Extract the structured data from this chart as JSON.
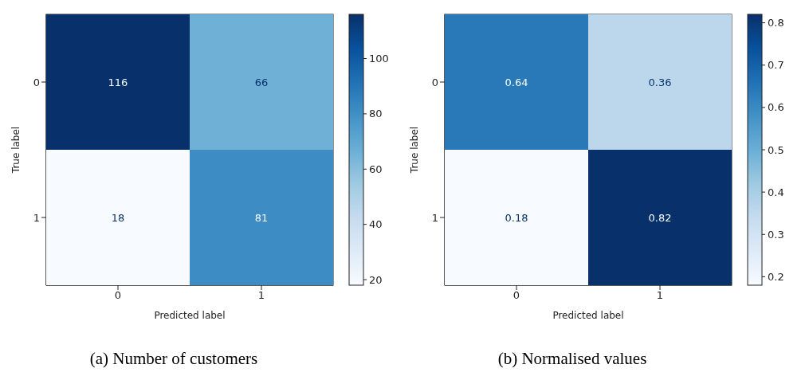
{
  "chart_data": [
    {
      "type": "heatmap",
      "title": "(a) Number of customers",
      "xlabel": "Predicted label",
      "ylabel": "True label",
      "categories": [
        "0",
        "1"
      ],
      "y_categories": [
        "0",
        "1"
      ],
      "cells": [
        [
          116,
          66
        ],
        [
          18,
          81
        ]
      ],
      "data_labels": true,
      "clim": [
        18,
        116
      ],
      "cticks": [
        20,
        40,
        60,
        80,
        100
      ]
    },
    {
      "type": "heatmap",
      "title": "(b) Normalised values",
      "xlabel": "Predicted label",
      "ylabel": "True label",
      "categories": [
        "0",
        "1"
      ],
      "y_categories": [
        "0",
        "1"
      ],
      "cells": [
        [
          0.64,
          0.36
        ],
        [
          0.18,
          0.82
        ]
      ],
      "data_labels": true,
      "clim": [
        0.18,
        0.82
      ],
      "cticks": [
        0.2,
        0.3,
        0.4,
        0.5,
        0.6,
        0.7,
        0.8
      ]
    }
  ]
}
